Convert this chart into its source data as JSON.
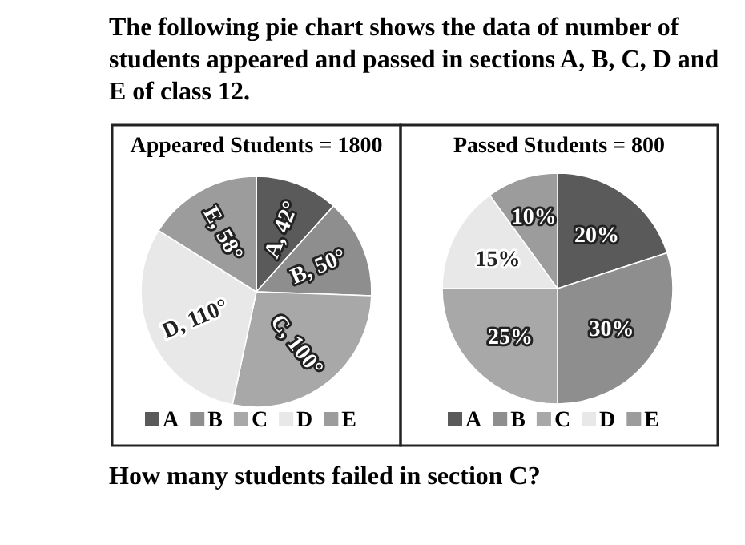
{
  "chart_data": [
    {
      "type": "pie",
      "title": "Appeared Students = 1800",
      "categories": [
        "A",
        "B",
        "C",
        "D",
        "E"
      ],
      "values": [
        42,
        50,
        100,
        110,
        58
      ],
      "colors": [
        "#5a5a5a",
        "#8e8e8e",
        "#a8a8a8",
        "#e8e8e8",
        "#9c9c9c"
      ],
      "value_labels": [
        "A, 42°",
        "B, 50°",
        "C, 100°",
        "D, 110°",
        "E, 58°"
      ],
      "legend": "bottom",
      "annotations": [
        "The following pie chart shows the data of number of students appeared and passed in sections A, B, C, D and E of class 12."
      ]
    },
    {
      "type": "pie",
      "title": "Passed Students = 800",
      "categories": [
        "A",
        "B",
        "C",
        "D",
        "E"
      ],
      "values": [
        20,
        30,
        25,
        15,
        10
      ],
      "colors": [
        "#5a5a5a",
        "#8e8e8e",
        "#a8a8a8",
        "#e8e8e8",
        "#9c9c9c"
      ],
      "value_labels": [
        "20%",
        "30%",
        "25%",
        "15%",
        "10%"
      ],
      "legend": "bottom",
      "annotations": [
        "How many students failed in section C?"
      ]
    }
  ]
}
